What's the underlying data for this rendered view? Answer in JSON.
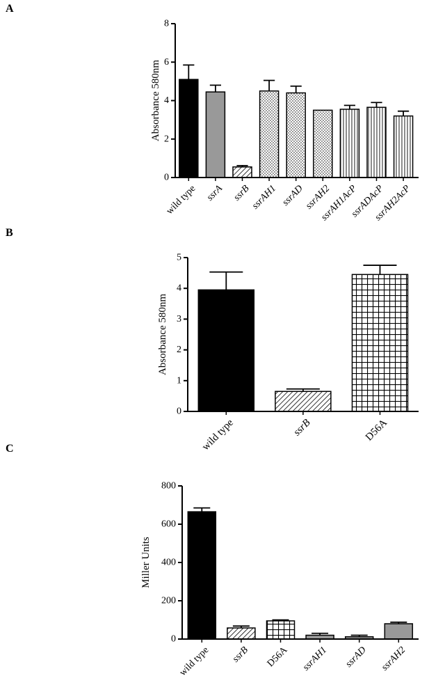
{
  "panels": [
    {
      "letter": "A"
    },
    {
      "letter": "B"
    },
    {
      "letter": "C"
    }
  ],
  "chart_data": [
    {
      "type": "bar",
      "panel": "A",
      "title": "",
      "xlabel": "",
      "ylabel": "Absorbance 580nm",
      "ylim": [
        0,
        8
      ],
      "yticks": [
        0,
        2,
        4,
        6,
        8
      ],
      "categories": [
        "wild type",
        "ssrA",
        "ssrB",
        "ssrAH1",
        "ssrAD",
        "ssrAH2",
        "ssrAH1AcP",
        "ssrADAcP",
        "ssrAH2AcP"
      ],
      "category_italic": [
        false,
        true,
        true,
        true,
        true,
        true,
        true,
        true,
        true
      ],
      "values": [
        5.1,
        4.45,
        0.55,
        4.5,
        4.4,
        3.5,
        3.55,
        3.65,
        3.2
      ],
      "errors": [
        0.75,
        0.35,
        0.07,
        0.55,
        0.35,
        0.0,
        0.2,
        0.25,
        0.25
      ],
      "fills": [
        "solid-black",
        "solid-gray",
        "diagonal-hatch",
        "dots",
        "dots",
        "dots",
        "vertical-lines",
        "vertical-lines",
        "vertical-lines"
      ],
      "colors": {
        "black": "#000000",
        "gray": "#999999"
      }
    },
    {
      "type": "bar",
      "panel": "B",
      "title": "",
      "xlabel": "",
      "ylabel": "Absorbance 580nm",
      "ylim": [
        0,
        5
      ],
      "yticks": [
        0,
        1,
        2,
        3,
        4,
        5
      ],
      "categories": [
        "wild type",
        "ssrB",
        "D56A"
      ],
      "category_italic": [
        false,
        true,
        false
      ],
      "values": [
        3.95,
        0.65,
        4.45
      ],
      "errors": [
        0.58,
        0.08,
        0.3
      ],
      "fills": [
        "solid-black",
        "diagonal-hatch",
        "grid"
      ],
      "colors": {
        "black": "#000000"
      }
    },
    {
      "type": "bar",
      "panel": "C",
      "title": "",
      "xlabel": "",
      "ylabel": "Miller Units",
      "ylim": [
        0,
        800
      ],
      "yticks": [
        0,
        200,
        400,
        600,
        800
      ],
      "categories": [
        "wild type",
        "ssrB",
        "D56A",
        "ssrAH1",
        "ssrAD",
        "ssrAH2"
      ],
      "category_italic": [
        false,
        true,
        false,
        true,
        true,
        true
      ],
      "values": [
        665,
        58,
        95,
        20,
        12,
        80
      ],
      "errors": [
        20,
        10,
        5,
        10,
        8,
        8
      ],
      "fills": [
        "solid-black",
        "diagonal-hatch",
        "grid",
        "solid-gray",
        "solid-gray",
        "solid-gray"
      ],
      "colors": {
        "black": "#000000",
        "gray": "#999999"
      }
    }
  ]
}
